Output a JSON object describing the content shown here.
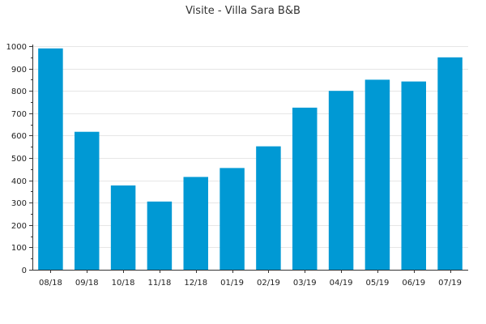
{
  "chart_data": {
    "type": "bar",
    "title": "Visite - Villa Sara B&B",
    "xlabel": "",
    "ylabel": "",
    "categories": [
      "08/18",
      "09/18",
      "10/18",
      "11/18",
      "12/18",
      "01/19",
      "02/19",
      "03/19",
      "04/19",
      "05/19",
      "06/19",
      "07/19"
    ],
    "values": [
      990,
      617,
      377,
      305,
      415,
      455,
      552,
      725,
      800,
      850,
      842,
      950
    ],
    "ylim": [
      0,
      1000
    ],
    "yticks": [
      0,
      100,
      200,
      300,
      400,
      500,
      600,
      700,
      800,
      900,
      1000
    ],
    "grid": true,
    "legend": "none",
    "colors": {
      "bar": "#0099d4",
      "grid": "#e6e6e6",
      "axis": "#333333",
      "text": "#222222"
    }
  }
}
